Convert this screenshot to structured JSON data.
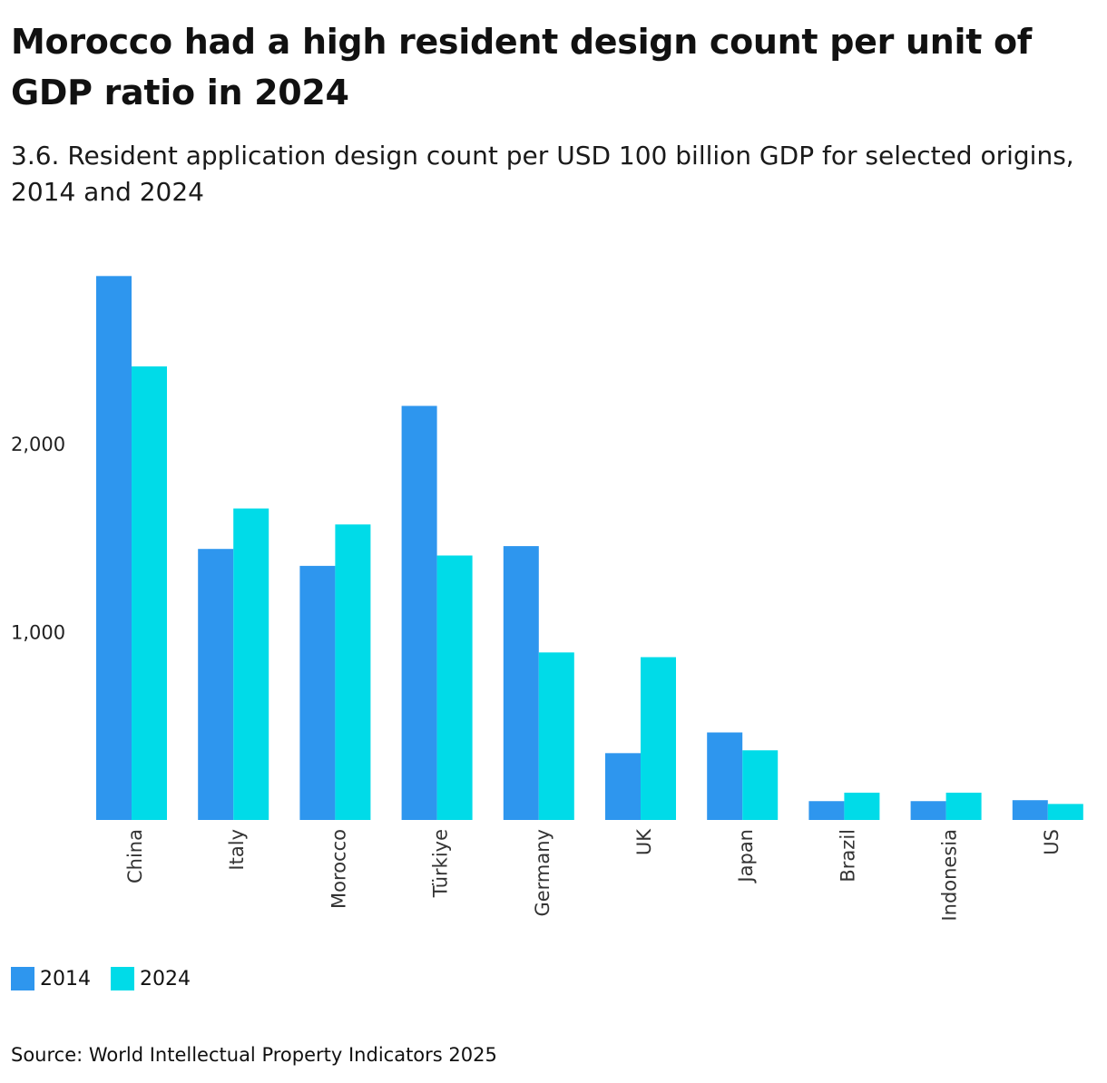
{
  "title": "Morocco had a high resident design count per unit of GDP ratio in 2024",
  "subtitle": "3.6. Resident application design count per USD 100 billion GDP for selected origins, 2014 and 2024",
  "source": "Source: World Intellectual Property Indicators 2025",
  "colors": {
    "series_2014": "#2e96ee",
    "series_2024": "#00dbe8"
  },
  "chart_data": {
    "type": "bar",
    "title": "",
    "xlabel": "",
    "ylabel": "",
    "categories": [
      "China",
      "Italy",
      "Morocco",
      "Türkiye",
      "Germany",
      "UK",
      "Japan",
      "Brazil",
      "Indonesia",
      "US"
    ],
    "series": [
      {
        "name": "2014",
        "color": "#2e96ee",
        "values": [
          2890,
          1440,
          1350,
          2200,
          1455,
          355,
          465,
          100,
          100,
          105
        ]
      },
      {
        "name": "2024",
        "color": "#00dbe8",
        "values": [
          2410,
          1655,
          1570,
          1405,
          890,
          865,
          370,
          145,
          145,
          85
        ]
      }
    ],
    "y_ticks": [
      {
        "value": 1000,
        "label": "1,000"
      },
      {
        "value": 2000,
        "label": "2,000"
      }
    ],
    "ylim": [
      0,
      3000
    ],
    "grid": false,
    "legend_position": "bottom-left",
    "legend": [
      "2014",
      "2024"
    ]
  }
}
